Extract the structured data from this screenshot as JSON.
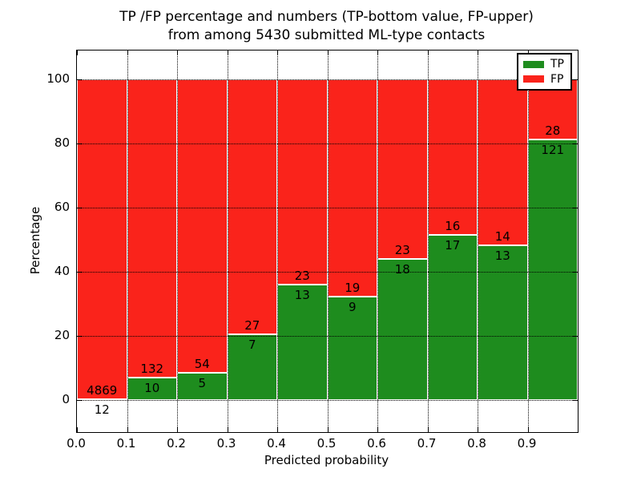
{
  "chart_data": {
    "type": "bar",
    "subtype": "stacked-percentage-histogram",
    "title_line1": "TP /FP percentage and numbers (TP-bottom value, FP-upper)",
    "title_line2": "from among 5430 submitted ML-type contacts",
    "xlabel": "Predicted probability",
    "ylabel": "Percentage",
    "total_contacts": 5430,
    "xlim": [
      0.0,
      1.0
    ],
    "ylim": [
      -10,
      109
    ],
    "x_ticks": [
      "0.0",
      "0.1",
      "0.2",
      "0.3",
      "0.4",
      "0.5",
      "0.6",
      "0.7",
      "0.8",
      "0.9"
    ],
    "y_ticks": [
      0,
      20,
      40,
      60,
      80,
      100
    ],
    "grid": "dotted",
    "legend_position": "upper-right",
    "bin_edges": [
      0.0,
      0.1,
      0.2,
      0.3,
      0.4,
      0.5,
      0.6,
      0.7,
      0.8,
      0.9,
      1.0
    ],
    "series": [
      {
        "name": "TP",
        "color": "#1e8c1e",
        "counts": [
          12,
          10,
          5,
          7,
          13,
          9,
          18,
          17,
          13,
          121
        ]
      },
      {
        "name": "FP",
        "color": "#fa231b",
        "counts": [
          4869,
          132,
          54,
          27,
          23,
          19,
          23,
          16,
          14,
          28
        ]
      }
    ],
    "tp_percent_by_bin": [
      0.25,
      7.04,
      8.47,
      20.59,
      36.11,
      32.14,
      43.9,
      51.52,
      48.15,
      81.21
    ],
    "axis_color": "#000000",
    "bar_edge_color": "#ffffff"
  }
}
